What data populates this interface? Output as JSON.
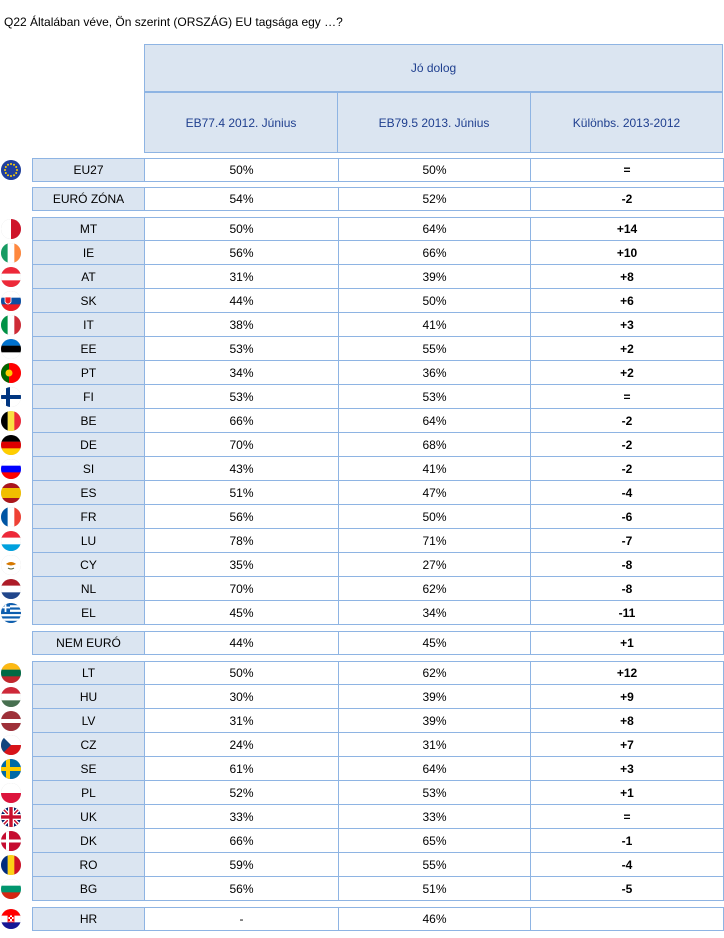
{
  "title": "Q22 Általában véve, Ön szerint (ORSZÁG) EU tagsága egy …?",
  "header": {
    "group": "Jó dolog",
    "col1": "EB77.4 2012. Június",
    "col2": "EB79.5 2013. Június",
    "col3": "Különbs. 2013-2012"
  },
  "rows": [
    {
      "label": "EU27",
      "v1": "50%",
      "v2": "50%",
      "diff": "=",
      "flag": "eu"
    },
    {
      "label": "EURÓ ZÓNA",
      "v1": "54%",
      "v2": "52%",
      "diff": "-2",
      "flag": ""
    },
    {
      "label": "MT",
      "v1": "50%",
      "v2": "64%",
      "diff": "+14",
      "flag": "mt"
    },
    {
      "label": "IE",
      "v1": "56%",
      "v2": "66%",
      "diff": "+10",
      "flag": "ie"
    },
    {
      "label": "AT",
      "v1": "31%",
      "v2": "39%",
      "diff": "+8",
      "flag": "at"
    },
    {
      "label": "SK",
      "v1": "44%",
      "v2": "50%",
      "diff": "+6",
      "flag": "sk"
    },
    {
      "label": "IT",
      "v1": "38%",
      "v2": "41%",
      "diff": "+3",
      "flag": "it"
    },
    {
      "label": "EE",
      "v1": "53%",
      "v2": "55%",
      "diff": "+2",
      "flag": "ee"
    },
    {
      "label": "PT",
      "v1": "34%",
      "v2": "36%",
      "diff": "+2",
      "flag": "pt"
    },
    {
      "label": "FI",
      "v1": "53%",
      "v2": "53%",
      "diff": "=",
      "flag": "fi"
    },
    {
      "label": "BE",
      "v1": "66%",
      "v2": "64%",
      "diff": "-2",
      "flag": "be"
    },
    {
      "label": "DE",
      "v1": "70%",
      "v2": "68%",
      "diff": "-2",
      "flag": "de"
    },
    {
      "label": "SI",
      "v1": "43%",
      "v2": "41%",
      "diff": "-2",
      "flag": "si"
    },
    {
      "label": "ES",
      "v1": "51%",
      "v2": "47%",
      "diff": "-4",
      "flag": "es"
    },
    {
      "label": "FR",
      "v1": "56%",
      "v2": "50%",
      "diff": "-6",
      "flag": "fr"
    },
    {
      "label": "LU",
      "v1": "78%",
      "v2": "71%",
      "diff": "-7",
      "flag": "lu"
    },
    {
      "label": "CY",
      "v1": "35%",
      "v2": "27%",
      "diff": "-8",
      "flag": "cy"
    },
    {
      "label": "NL",
      "v1": "70%",
      "v2": "62%",
      "diff": "-8",
      "flag": "nl"
    },
    {
      "label": "EL",
      "v1": "45%",
      "v2": "34%",
      "diff": "-11",
      "flag": "el"
    },
    {
      "label": "NEM EURÓ",
      "v1": "44%",
      "v2": "45%",
      "diff": "+1",
      "flag": ""
    },
    {
      "label": "LT",
      "v1": "50%",
      "v2": "62%",
      "diff": "+12",
      "flag": "lt"
    },
    {
      "label": "HU",
      "v1": "30%",
      "v2": "39%",
      "diff": "+9",
      "flag": "hu"
    },
    {
      "label": "LV",
      "v1": "31%",
      "v2": "39%",
      "diff": "+8",
      "flag": "lv"
    },
    {
      "label": "CZ",
      "v1": "24%",
      "v2": "31%",
      "diff": "+7",
      "flag": "cz"
    },
    {
      "label": "SE",
      "v1": "61%",
      "v2": "64%",
      "diff": "+3",
      "flag": "se"
    },
    {
      "label": "PL",
      "v1": "52%",
      "v2": "53%",
      "diff": "+1",
      "flag": "pl"
    },
    {
      "label": "UK",
      "v1": "33%",
      "v2": "33%",
      "diff": "=",
      "flag": "uk"
    },
    {
      "label": "DK",
      "v1": "66%",
      "v2": "65%",
      "diff": "-1",
      "flag": "dk"
    },
    {
      "label": "RO",
      "v1": "59%",
      "v2": "55%",
      "diff": "-4",
      "flag": "ro"
    },
    {
      "label": "BG",
      "v1": "56%",
      "v2": "51%",
      "diff": "-5",
      "flag": "bg"
    },
    {
      "label": "HR",
      "v1": "-",
      "v2": "46%",
      "diff": "",
      "flag": "hr"
    }
  ]
}
